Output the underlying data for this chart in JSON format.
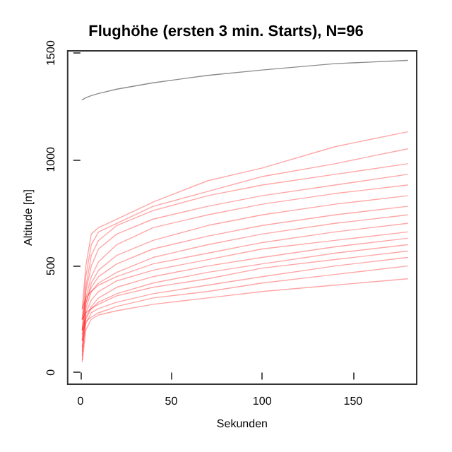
{
  "chart_data": {
    "type": "line",
    "title": "Flughöhe (ersten 3 min. Starts), N=96",
    "xlabel": "Sekunden",
    "ylabel": "Altitude [m]",
    "x": [
      1,
      3,
      6,
      10,
      20,
      40,
      70,
      100,
      140,
      180
    ],
    "xlim": [
      -7,
      185
    ],
    "xticks": [
      0,
      50,
      100,
      150
    ],
    "ylim": [
      -55,
      1510
    ],
    "yticks": [
      0,
      500,
      1000,
      1500
    ],
    "grid": false,
    "marker": "none",
    "line_style": "solid",
    "series": [
      {
        "color": "#808080",
        "values": [
          1280,
          1290,
          1300,
          1310,
          1330,
          1360,
          1395,
          1420,
          1450,
          1465
        ]
      },
      {
        "color": "#ff0000",
        "values": [
          300,
          500,
          650,
          680,
          720,
          800,
          900,
          960,
          1060,
          1130
        ]
      },
      {
        "color": "#ff0000",
        "values": [
          250,
          450,
          600,
          660,
          700,
          780,
          850,
          920,
          980,
          1050
        ]
      },
      {
        "color": "#ff0000",
        "values": [
          200,
          400,
          550,
          620,
          690,
          760,
          830,
          880,
          930,
          980
        ]
      },
      {
        "color": "#ff0000",
        "values": [
          150,
          380,
          500,
          580,
          650,
          720,
          780,
          830,
          880,
          930
        ]
      },
      {
        "color": "#ff0000",
        "values": [
          250,
          350,
          450,
          520,
          600,
          680,
          740,
          790,
          840,
          880
        ]
      },
      {
        "color": "#ff0000",
        "values": [
          100,
          320,
          420,
          480,
          550,
          620,
          690,
          740,
          790,
          830
        ]
      },
      {
        "color": "#ff0000",
        "values": [
          200,
          330,
          400,
          450,
          510,
          580,
          640,
          690,
          740,
          780
        ]
      },
      {
        "color": "#ff0000",
        "values": [
          80,
          300,
          380,
          420,
          470,
          540,
          600,
          650,
          700,
          740
        ]
      },
      {
        "color": "#ff0000",
        "values": [
          300,
          350,
          380,
          410,
          450,
          510,
          560,
          610,
          660,
          700
        ]
      },
      {
        "color": "#ff0000",
        "values": [
          150,
          280,
          340,
          380,
          430,
          480,
          530,
          580,
          620,
          660
        ]
      },
      {
        "color": "#ff0000",
        "values": [
          200,
          260,
          310,
          350,
          400,
          450,
          500,
          540,
          590,
          630
        ]
      },
      {
        "color": "#ff0000",
        "values": [
          60,
          250,
          300,
          330,
          370,
          420,
          470,
          510,
          560,
          600
        ]
      },
      {
        "color": "#ff0000",
        "values": [
          250,
          280,
          300,
          320,
          360,
          400,
          440,
          490,
          530,
          570
        ]
      },
      {
        "color": "#ff0000",
        "values": [
          120,
          230,
          280,
          300,
          330,
          370,
          410,
          450,
          500,
          540
        ]
      },
      {
        "color": "#ff0000",
        "values": [
          180,
          240,
          260,
          280,
          310,
          350,
          380,
          420,
          460,
          500
        ]
      },
      {
        "color": "#ff0000",
        "values": [
          50,
          200,
          250,
          270,
          290,
          320,
          350,
          380,
          410,
          440
        ]
      }
    ]
  }
}
